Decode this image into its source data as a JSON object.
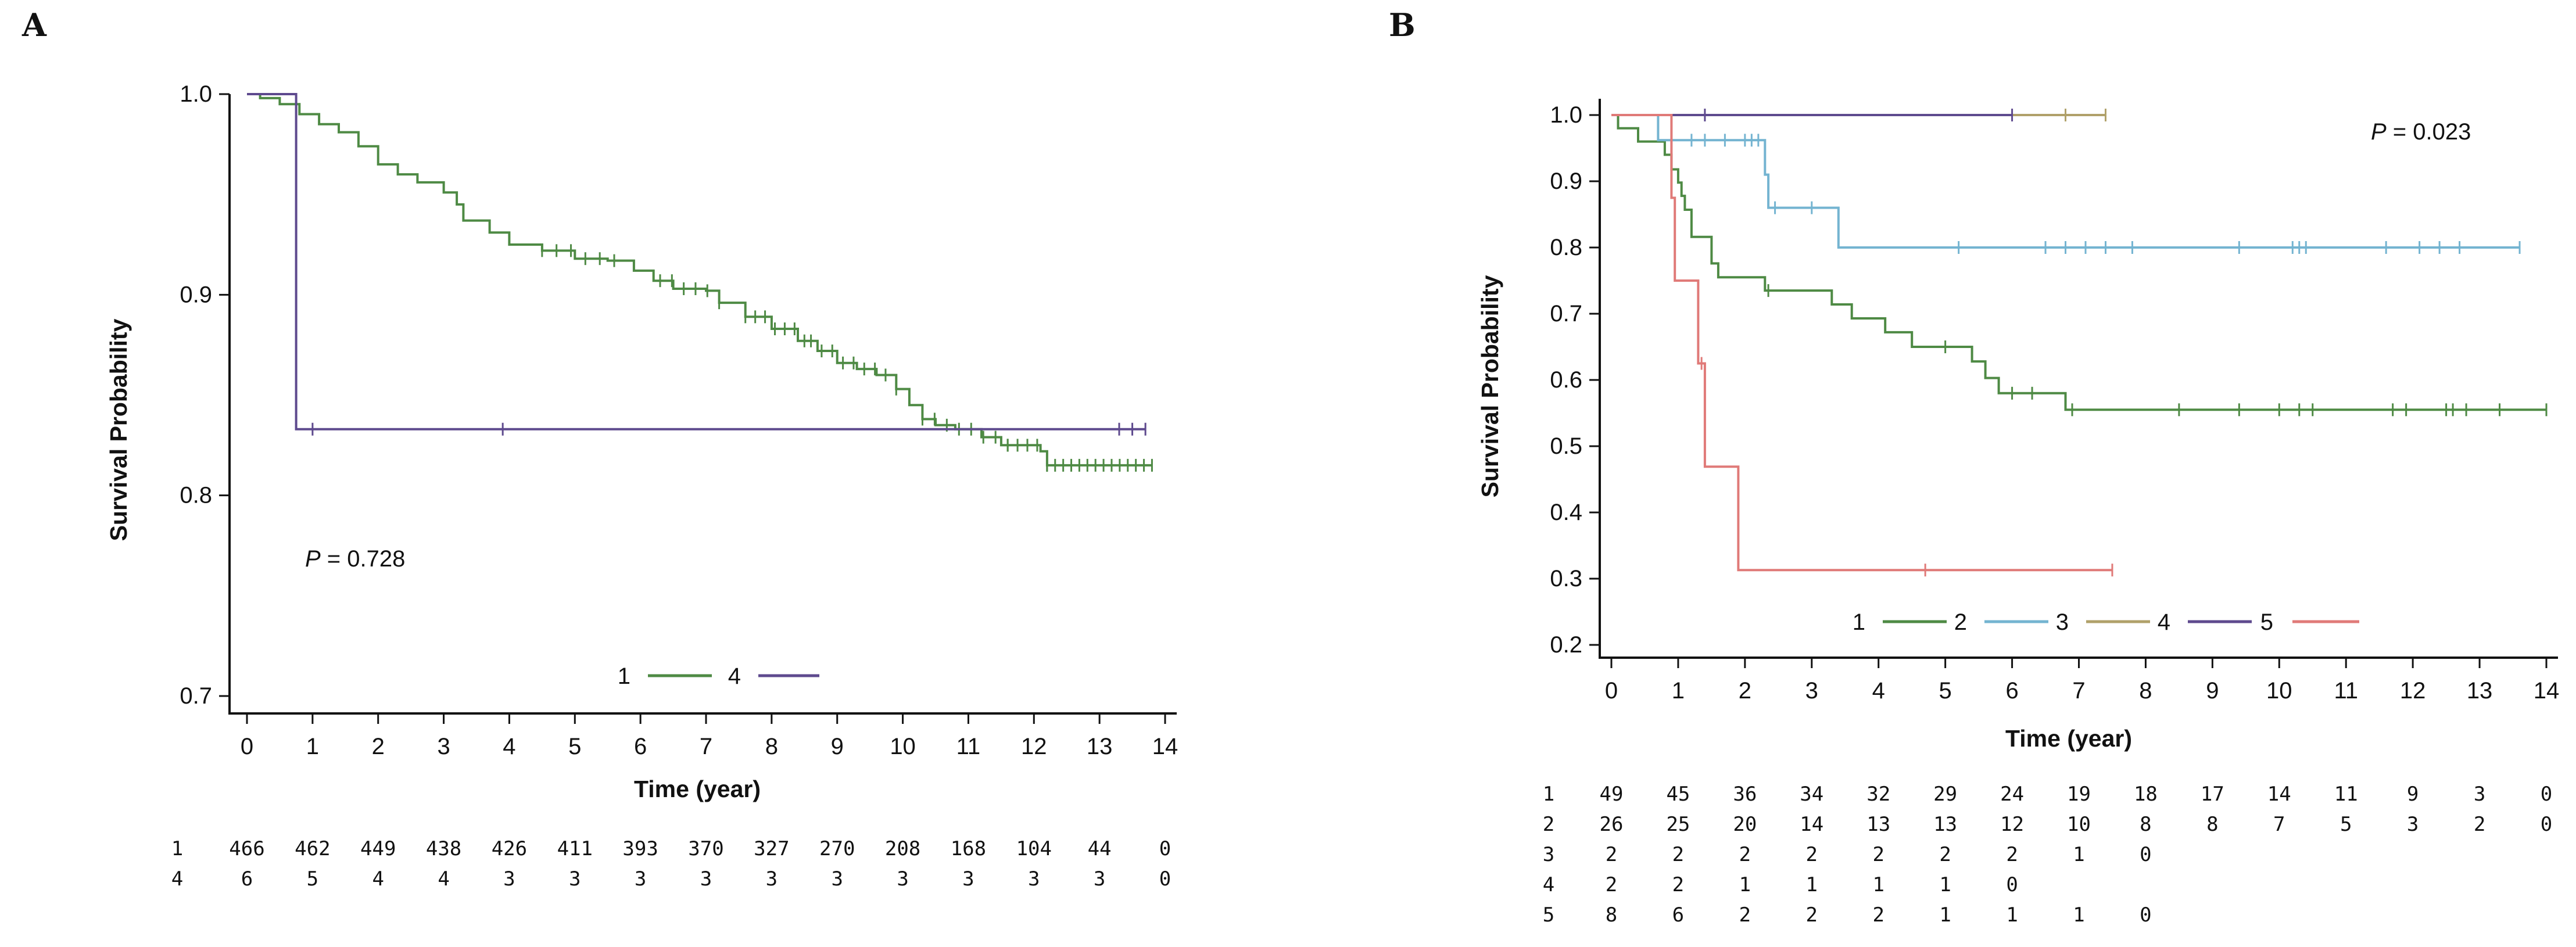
{
  "chart_data": [
    {
      "panel_label": "A",
      "type": "line",
      "subtype": "kaplan-meier",
      "xlabel": "Time (year)",
      "ylabel": "Survival Probability",
      "xlim": [
        0,
        14
      ],
      "ylim": [
        0.7,
        1.0
      ],
      "xticks": [
        "0",
        "1",
        "2",
        "3",
        "4",
        "5",
        "6",
        "7",
        "8",
        "9",
        "10",
        "11",
        "12",
        "13",
        "14"
      ],
      "yticks": [
        {
          "value": 0.7,
          "label": "0.7"
        },
        {
          "value": 0.8,
          "label": "0.8"
        },
        {
          "value": 0.9,
          "label": "0.9"
        },
        {
          "value": 1.0,
          "label": "1.0"
        }
      ],
      "p_prefix": "P",
      "p_value": " = 0.728",
      "series": [
        {
          "name": "1",
          "color": "#4e8a44",
          "steps": [
            [
              0,
              1.0
            ],
            [
              0.2,
              0.998
            ],
            [
              0.5,
              0.995
            ],
            [
              0.8,
              0.99
            ],
            [
              1.1,
              0.985
            ],
            [
              1.4,
              0.981
            ],
            [
              1.7,
              0.974
            ],
            [
              2.0,
              0.965
            ],
            [
              2.3,
              0.96
            ],
            [
              2.6,
              0.956
            ],
            [
              3.0,
              0.951
            ],
            [
              3.2,
              0.945
            ],
            [
              3.3,
              0.937
            ],
            [
              3.7,
              0.931
            ],
            [
              4.0,
              0.925
            ],
            [
              4.5,
              0.922
            ],
            [
              5.0,
              0.918
            ],
            [
              5.5,
              0.917
            ],
            [
              5.9,
              0.912
            ],
            [
              6.2,
              0.907
            ],
            [
              6.5,
              0.903
            ],
            [
              7.0,
              0.902
            ],
            [
              7.2,
              0.896
            ],
            [
              7.6,
              0.889
            ],
            [
              8.0,
              0.883
            ],
            [
              8.4,
              0.877
            ],
            [
              8.7,
              0.872
            ],
            [
              9.0,
              0.866
            ],
            [
              9.3,
              0.863
            ],
            [
              9.6,
              0.86
            ],
            [
              9.9,
              0.853
            ],
            [
              10.1,
              0.845
            ],
            [
              10.3,
              0.838
            ],
            [
              10.5,
              0.835
            ],
            [
              10.8,
              0.833
            ],
            [
              11.2,
              0.829
            ],
            [
              11.5,
              0.825
            ],
            [
              12.1,
              0.822
            ],
            [
              12.2,
              0.815
            ],
            [
              13.8,
              0.815
            ]
          ],
          "censor_ranges": [
            [
              4.5,
              5.6,
              6
            ],
            [
              6.3,
              7.2,
              6
            ],
            [
              7.6,
              8.5,
              7
            ],
            [
              8.6,
              9.9,
              9
            ],
            [
              10.3,
              11.6,
              8
            ],
            [
              11.6,
              12.2,
              5
            ],
            [
              12.2,
              13.8,
              14
            ]
          ],
          "end": 13.8
        },
        {
          "name": "4",
          "color": "#5e4a8e",
          "steps": [
            [
              0,
              1.0
            ],
            [
              0.75,
              1.0
            ],
            [
              0.75,
              0.833
            ],
            [
              13.7,
              0.833
            ]
          ],
          "censor_times": [
            1.0,
            3.9,
            13.3,
            13.5,
            13.7
          ],
          "end": 13.7
        }
      ],
      "risk_table": {
        "times": [
          0,
          1,
          2,
          3,
          4,
          5,
          6,
          7,
          8,
          9,
          10,
          11,
          12,
          13,
          14
        ],
        "rows": [
          {
            "group": "1",
            "counts": [
              "466",
              "462",
              "449",
              "438",
              "426",
              "411",
              "393",
              "370",
              "327",
              "270",
              "208",
              "168",
              "104",
              "44",
              "0"
            ]
          },
          {
            "group": "4",
            "counts": [
              "6",
              "5",
              "4",
              "4",
              "3",
              "3",
              "3",
              "3",
              "3",
              "3",
              "3",
              "3",
              "3",
              "3",
              "0"
            ]
          }
        ]
      }
    },
    {
      "panel_label": "B",
      "type": "line",
      "subtype": "kaplan-meier",
      "xlabel": "Time (year)",
      "ylabel": "Survival Probability",
      "xlim": [
        0,
        14
      ],
      "ylim": [
        0.2,
        1.0
      ],
      "xticks": [
        "0",
        "1",
        "2",
        "3",
        "4",
        "5",
        "6",
        "7",
        "8",
        "9",
        "10",
        "11",
        "12",
        "13",
        "14"
      ],
      "yticks": [
        {
          "value": 0.2,
          "label": "0.2"
        },
        {
          "value": 0.3,
          "label": "0.3"
        },
        {
          "value": 0.4,
          "label": "0.4"
        },
        {
          "value": 0.5,
          "label": "0.5"
        },
        {
          "value": 0.6,
          "label": "0.6"
        },
        {
          "value": 0.7,
          "label": "0.7"
        },
        {
          "value": 0.8,
          "label": "0.8"
        },
        {
          "value": 0.9,
          "label": "0.9"
        },
        {
          "value": 1.0,
          "label": "1.0"
        }
      ],
      "p_prefix": "P",
      "p_value": " = 0.023",
      "series": [
        {
          "name": "1",
          "color": "#4e8a44",
          "steps": [
            [
              0,
              1.0
            ],
            [
              0.1,
              0.98
            ],
            [
              0.4,
              0.96
            ],
            [
              0.8,
              0.94
            ],
            [
              0.9,
              0.918
            ],
            [
              1.0,
              0.898
            ],
            [
              1.05,
              0.878
            ],
            [
              1.1,
              0.857
            ],
            [
              1.2,
              0.816
            ],
            [
              1.5,
              0.776
            ],
            [
              1.6,
              0.755
            ],
            [
              2.3,
              0.735
            ],
            [
              3.3,
              0.714
            ],
            [
              3.6,
              0.693
            ],
            [
              4.1,
              0.672
            ],
            [
              4.5,
              0.65
            ],
            [
              5.4,
              0.628
            ],
            [
              5.6,
              0.603
            ],
            [
              5.8,
              0.58
            ],
            [
              6.8,
              0.555
            ],
            [
              14.0,
              0.555
            ]
          ],
          "censor_times": [
            2.35,
            5.0,
            6.0,
            6.3,
            6.9,
            8.5,
            9.4,
            10.0,
            10.3,
            10.5,
            11.7,
            11.9,
            12.5,
            12.6,
            12.8,
            13.3,
            14.0
          ],
          "end": 14.0
        },
        {
          "name": "2",
          "color": "#74b4d1",
          "steps": [
            [
              0,
              1.0
            ],
            [
              0.7,
              1.0
            ],
            [
              0.7,
              0.962
            ],
            [
              2.2,
              0.962
            ],
            [
              2.3,
              0.91
            ],
            [
              2.35,
              0.86
            ],
            [
              3.4,
              0.86
            ],
            [
              3.4,
              0.8
            ],
            [
              13.6,
              0.8
            ]
          ],
          "censor_times": [
            1.2,
            1.4,
            1.7,
            2.0,
            2.1,
            2.2,
            2.45,
            3.0,
            5.2,
            6.5,
            6.8,
            7.1,
            7.4,
            7.8,
            9.4,
            10.2,
            10.3,
            10.4,
            11.6,
            12.1,
            12.4,
            12.7,
            13.6
          ],
          "end": 13.6
        },
        {
          "name": "3",
          "color": "#b0a16a",
          "steps": [
            [
              0,
              1.0
            ],
            [
              7.4,
              1.0
            ]
          ],
          "censor_times": [
            6.8,
            7.4
          ],
          "end": 7.4
        },
        {
          "name": "4",
          "color": "#5e4a8e",
          "steps": [
            [
              0,
              1.0
            ],
            [
              6.0,
              1.0
            ]
          ],
          "censor_times": [
            1.4,
            6.0
          ],
          "end": 6.0
        },
        {
          "name": "5",
          "color": "#e07a78",
          "steps": [
            [
              0,
              1.0
            ],
            [
              0.9,
              1.0
            ],
            [
              0.9,
              0.875
            ],
            [
              0.95,
              0.75
            ],
            [
              1.3,
              0.75
            ],
            [
              1.3,
              0.625
            ],
            [
              1.4,
              0.625
            ],
            [
              1.4,
              0.469
            ],
            [
              1.9,
              0.469
            ],
            [
              1.9,
              0.313
            ],
            [
              7.5,
              0.313
            ]
          ],
          "censor_times": [
            1.35,
            4.7,
            7.5
          ],
          "end": 7.5
        }
      ],
      "risk_table": {
        "times": [
          0,
          1,
          2,
          3,
          4,
          5,
          6,
          7,
          8,
          9,
          10,
          11,
          12,
          13,
          14
        ],
        "rows": [
          {
            "group": "1",
            "counts": [
              "49",
              "45",
              "36",
              "34",
              "32",
              "29",
              "24",
              "19",
              "18",
              "17",
              "14",
              "11",
              "9",
              "3",
              "0"
            ]
          },
          {
            "group": "2",
            "counts": [
              "26",
              "25",
              "20",
              "14",
              "13",
              "13",
              "12",
              "10",
              "8",
              "8",
              "7",
              "5",
              "3",
              "2",
              "0"
            ]
          },
          {
            "group": "3",
            "counts": [
              "2",
              "2",
              "2",
              "2",
              "2",
              "2",
              "2",
              "1",
              "0"
            ]
          },
          {
            "group": "4",
            "counts": [
              "2",
              "2",
              "1",
              "1",
              "1",
              "1",
              "0"
            ]
          },
          {
            "group": "5",
            "counts": [
              "8",
              "6",
              "2",
              "2",
              "2",
              "1",
              "1",
              "1",
              "0"
            ]
          }
        ]
      }
    }
  ]
}
